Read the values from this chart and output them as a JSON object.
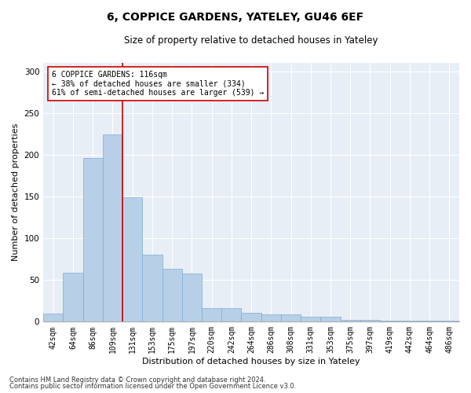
{
  "title1": "6, COPPICE GARDENS, YATELEY, GU46 6EF",
  "title2": "Size of property relative to detached houses in Yateley",
  "xlabel": "Distribution of detached houses by size in Yateley",
  "ylabel": "Number of detached properties",
  "categories": [
    "42sqm",
    "64sqm",
    "86sqm",
    "109sqm",
    "131sqm",
    "153sqm",
    "175sqm",
    "197sqm",
    "220sqm",
    "242sqm",
    "264sqm",
    "286sqm",
    "308sqm",
    "331sqm",
    "353sqm",
    "375sqm",
    "397sqm",
    "419sqm",
    "442sqm",
    "464sqm",
    "486sqm"
  ],
  "values": [
    10,
    59,
    196,
    224,
    149,
    80,
    63,
    58,
    16,
    16,
    11,
    9,
    9,
    6,
    6,
    2,
    2,
    1,
    1,
    1,
    1
  ],
  "bar_color": "#b8cfe8",
  "bar_edge_color": "#7aadd4",
  "property_line_color": "#cc0000",
  "annotation_text": "6 COPPICE GARDENS: 116sqm\n← 38% of detached houses are smaller (334)\n61% of semi-detached houses are larger (539) →",
  "annotation_box_color": "#ffffff",
  "annotation_box_edge_color": "#cc0000",
  "ylim": [
    0,
    310
  ],
  "plot_background": "#e8eef5",
  "fig_background": "#ffffff",
  "footer1": "Contains HM Land Registry data © Crown copyright and database right 2024.",
  "footer2": "Contains public sector information licensed under the Open Government Licence v3.0.",
  "title_fontsize": 10,
  "subtitle_fontsize": 8.5,
  "tick_fontsize": 7,
  "ylabel_fontsize": 8,
  "xlabel_fontsize": 8
}
